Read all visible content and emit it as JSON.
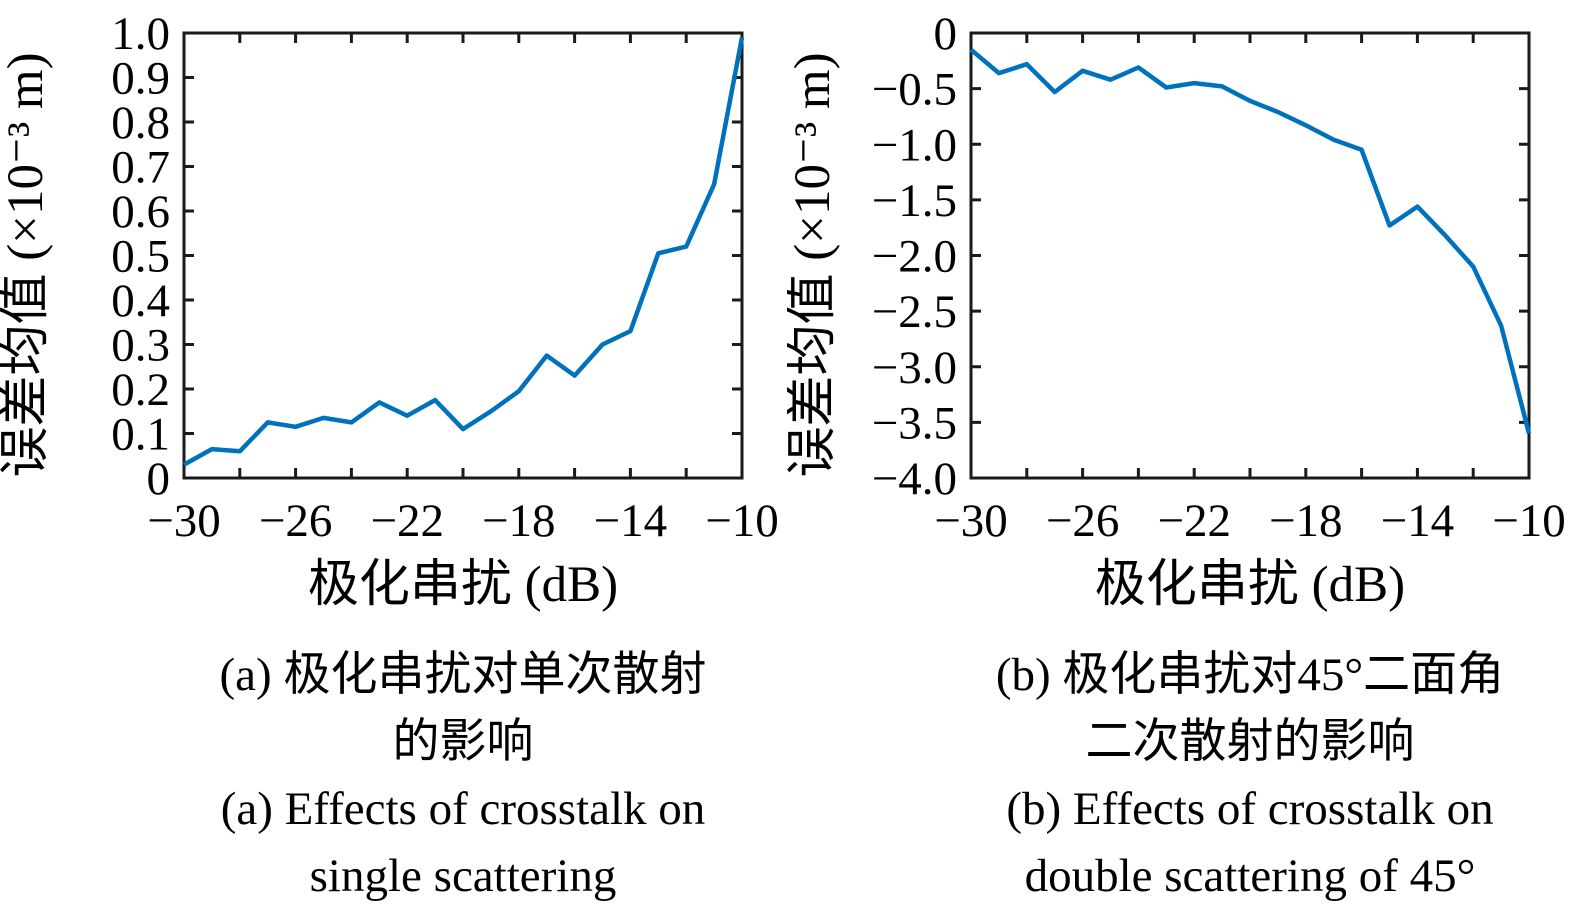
{
  "page": {
    "background": "#ffffff",
    "axis_color": "#1a1a1a",
    "line_color": "#0072BD"
  },
  "chart_data": [
    {
      "type": "line",
      "title": "",
      "xlabel": "极化串扰 (dB)",
      "ylabel": "误差均值 (×10⁻³ m)",
      "x": [
        -30,
        -29,
        -28,
        -27,
        -26,
        -25,
        -24,
        -23,
        -22,
        -21,
        -20,
        -19,
        -18,
        -17,
        -16,
        -15,
        -14,
        -13,
        -12,
        -11,
        -10
      ],
      "values": [
        0.03,
        0.065,
        0.06,
        0.125,
        0.115,
        0.135,
        0.125,
        0.17,
        0.14,
        0.175,
        0.11,
        0.15,
        0.195,
        0.275,
        0.23,
        0.3,
        0.33,
        0.505,
        0.52,
        0.66,
        0.99
      ],
      "xlim": [
        -30,
        -10
      ],
      "ylim": [
        0,
        1.0
      ],
      "xticks": [
        -30,
        -28,
        -26,
        -24,
        -22,
        -20,
        -18,
        -16,
        -14,
        -12,
        -10
      ],
      "xtick_labels": [
        "−30",
        "",
        "−26",
        "",
        "−22",
        "",
        "−18",
        "",
        "−14",
        "",
        "−10"
      ],
      "yticks": [
        0,
        0.1,
        0.2,
        0.3,
        0.4,
        0.5,
        0.6,
        0.7,
        0.8,
        0.9,
        1.0
      ],
      "ytick_labels": [
        "0",
        "0.1",
        "0.2",
        "0.3",
        "0.4",
        "0.5",
        "0.6",
        "0.7",
        "0.8",
        "0.9",
        "1.0"
      ],
      "line_color": "#0072BD",
      "grid": false,
      "legend": null
    },
    {
      "type": "line",
      "title": "",
      "xlabel": "极化串扰 (dB)",
      "ylabel": "误差均值 (×10⁻³ m)",
      "x": [
        -30,
        -29,
        -28,
        -27,
        -26,
        -25,
        -24,
        -23,
        -22,
        -21,
        -20,
        -19,
        -18,
        -17,
        -16,
        -15,
        -14,
        -13,
        -12,
        -11,
        -10
      ],
      "values": [
        -0.15,
        -0.36,
        -0.28,
        -0.53,
        -0.34,
        -0.42,
        -0.31,
        -0.49,
        -0.45,
        -0.48,
        -0.61,
        -0.71,
        -0.83,
        -0.96,
        -1.05,
        -1.73,
        -1.56,
        -1.82,
        -2.1,
        -2.63,
        -3.6
      ],
      "xlim": [
        -30,
        -10
      ],
      "ylim": [
        -4.0,
        0
      ],
      "xticks": [
        -30,
        -28,
        -26,
        -24,
        -22,
        -20,
        -18,
        -16,
        -14,
        -12,
        -10
      ],
      "xtick_labels": [
        "−30",
        "",
        "−26",
        "",
        "−22",
        "",
        "−18",
        "",
        "−14",
        "",
        "−10"
      ],
      "yticks": [
        -4.0,
        -3.5,
        -3.0,
        -2.5,
        -2.0,
        -1.5,
        -1.0,
        -0.5,
        0
      ],
      "ytick_labels": [
        "−4.0",
        "−3.5",
        "−3.0",
        "−2.5",
        "−2.0",
        "−1.5",
        "−1.0",
        "−0.5",
        "0"
      ],
      "line_color": "#0072BD",
      "grid": false,
      "legend": null
    }
  ],
  "captions": [
    {
      "zh_line1": "(a) 极化串扰对单次散射",
      "zh_line2": "的影响",
      "en_line1": "(a) Effects of crosstalk on",
      "en_line2": "single scattering"
    },
    {
      "zh_line1": "(b) 极化串扰对45°二面角",
      "zh_line2": "二次散射的影响",
      "en_line1": "(b) Effects of crosstalk on",
      "en_line2": "double scattering of 45°"
    }
  ]
}
